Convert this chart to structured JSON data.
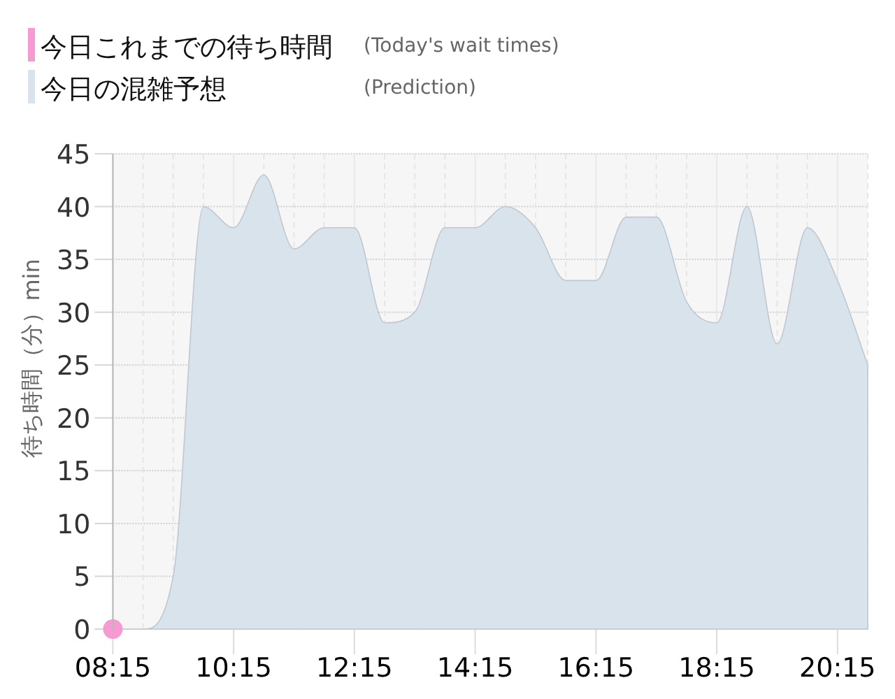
{
  "chart_data": {
    "type": "area",
    "ylabel": "待ち時間（分）min",
    "annotations": [
      "(Today's wait times)",
      "(Prediction)"
    ],
    "xlim": [
      8.25,
      20.75
    ],
    "xticks": [
      {
        "value": 8.25,
        "label": "08:15"
      },
      {
        "value": 8.75,
        "label": null
      },
      {
        "value": 9.25,
        "label": null
      },
      {
        "value": 9.75,
        "label": null
      },
      {
        "value": 10.25,
        "label": "10:15"
      },
      {
        "value": 10.75,
        "label": null
      },
      {
        "value": 11.25,
        "label": null
      },
      {
        "value": 11.75,
        "label": null
      },
      {
        "value": 12.25,
        "label": "12:15"
      },
      {
        "value": 12.75,
        "label": null
      },
      {
        "value": 13.25,
        "label": null
      },
      {
        "value": 13.75,
        "label": null
      },
      {
        "value": 14.25,
        "label": "14:15"
      },
      {
        "value": 14.75,
        "label": null
      },
      {
        "value": 15.25,
        "label": null
      },
      {
        "value": 15.75,
        "label": null
      },
      {
        "value": 16.25,
        "label": "16:15"
      },
      {
        "value": 16.75,
        "label": null
      },
      {
        "value": 17.25,
        "label": null
      },
      {
        "value": 17.75,
        "label": null
      },
      {
        "value": 18.25,
        "label": "18:15"
      },
      {
        "value": 18.75,
        "label": null
      },
      {
        "value": 19.25,
        "label": null
      },
      {
        "value": 19.75,
        "label": null
      },
      {
        "value": 20.25,
        "label": "20:15"
      },
      {
        "value": 20.75,
        "label": null
      }
    ],
    "ylim": [
      0,
      45
    ],
    "yticks": [
      0,
      5,
      10,
      15,
      20,
      25,
      30,
      35,
      40,
      45
    ],
    "grid": true,
    "legend": "top left",
    "series": [
      {
        "name": "今日これまでの待ち時間",
        "type": "scatter",
        "color": "#f59bd1",
        "x": [
          8.25
        ],
        "values": [
          0
        ]
      },
      {
        "name": "今日の混雑予想",
        "color": "#d9e3ec",
        "x": [
          8.25,
          8.75,
          9.25,
          9.75,
          10.25,
          10.75,
          11.25,
          11.75,
          12.25,
          12.75,
          13.25,
          13.75,
          14.25,
          14.75,
          15.25,
          15.75,
          16.25,
          16.75,
          17.25,
          17.75,
          18.25,
          18.75,
          19.25,
          19.75,
          20.25,
          20.75
        ],
        "values": [
          0,
          0,
          5,
          40,
          38,
          43,
          36,
          38,
          38,
          29,
          30,
          38,
          38,
          40,
          38,
          33,
          33,
          39,
          39,
          31,
          29,
          40,
          27,
          38,
          33,
          25
        ]
      }
    ]
  }
}
